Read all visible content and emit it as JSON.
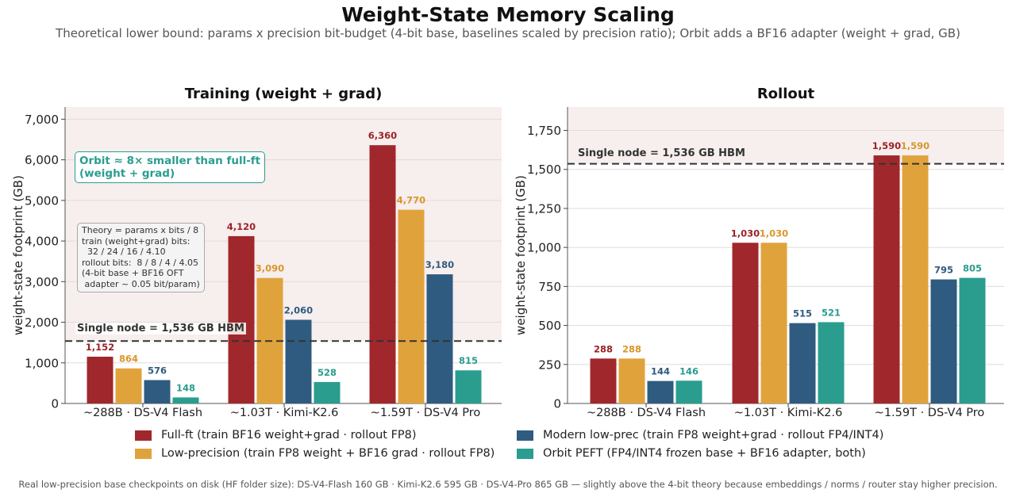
{
  "title": "Weight-State Memory Scaling",
  "subtitle": "Theoretical lower bound: params x precision bit-budget (4-bit base, baselines scaled by precision ratio); Orbit adds a BF16 adapter  (weight + grad, GB)",
  "colors": {
    "full_ft": "#a0282c",
    "low_prec": "#e0a33c",
    "modern": "#2f5b80",
    "orbit": "#2a9d8f",
    "hbm_band": "#f7eeee"
  },
  "legend": [
    {
      "label": "Full-ft  (train BF16 weight+grad · rollout FP8)",
      "color": "#a0282c"
    },
    {
      "label": "Low-precision  (train FP8 weight + BF16 grad · rollout FP8)",
      "color": "#e0a33c"
    },
    {
      "label": "Modern low-prec  (train FP8 weight+grad · rollout FP4/INT4)",
      "color": "#2f5b80"
    },
    {
      "label": "Orbit PEFT  (FP4/INT4 frozen base + BF16 adapter, both)",
      "color": "#2a9d8f"
    }
  ],
  "annotations": {
    "orbit_box": [
      "Orbit ≈ 8× smaller than full-ft",
      "(weight + grad)"
    ],
    "theory_box": [
      "Theory = params x bits / 8",
      "train (weight+grad) bits:",
      "  32 / 24 / 16 / 4.10",
      "rollout bits:  8 / 8 / 4 / 4.05",
      "(4-bit base + BF16 OFT",
      " adapter ~ 0.05 bit/param)"
    ],
    "hbm_line_label": "Single node = 1,536 GB HBM"
  },
  "footer": "Real low-precision base checkpoints on disk (HF folder size):  DS-V4-Flash 160 GB  ·  Kimi-K2.6 595 GB  ·  DS-V4-Pro 865 GB  — slightly above the 4-bit theory because embeddings / norms / router stay higher precision.",
  "chart_data": [
    {
      "type": "bar",
      "title": "Training  (weight + grad)",
      "ylabel": "weight-state footprint (GB)",
      "xlabel": "",
      "ylim": [
        0,
        7300
      ],
      "yticks": [
        0,
        1000,
        2000,
        3000,
        4000,
        5000,
        6000,
        7000
      ],
      "ytick_labels": [
        "0",
        "1,000",
        "2,000",
        "3,000",
        "4,000",
        "5,000",
        "6,000",
        "7,000"
      ],
      "grid": true,
      "categories": [
        "~288B  ·  DS-V4 Flash",
        "~1.03T  ·  Kimi-K2.6",
        "~1.59T  ·  DS-V4 Pro"
      ],
      "reference_line": {
        "value": 1536,
        "label": "Single node = 1,536 GB HBM"
      },
      "series": [
        {
          "name": "Full-ft",
          "values": [
            1152,
            4120,
            6360
          ],
          "labels": [
            "1,152",
            "4,120",
            "6,360"
          ]
        },
        {
          "name": "Low-precision",
          "values": [
            864,
            3090,
            4770
          ],
          "labels": [
            "864",
            "3,090",
            "4,770"
          ]
        },
        {
          "name": "Modern low-prec",
          "values": [
            576,
            2060,
            3180
          ],
          "labels": [
            "576",
            "2,060",
            "3,180"
          ]
        },
        {
          "name": "Orbit PEFT",
          "values": [
            148,
            528,
            815
          ],
          "labels": [
            "148",
            "528",
            "815"
          ]
        }
      ]
    },
    {
      "type": "bar",
      "title": "Rollout",
      "ylabel": "weight-state footprint (GB)",
      "xlabel": "",
      "ylim": [
        0,
        1900
      ],
      "yticks": [
        0,
        250,
        500,
        750,
        1000,
        1250,
        1500,
        1750
      ],
      "ytick_labels": [
        "0",
        "250",
        "500",
        "750",
        "1,000",
        "1,250",
        "1,500",
        "1,750"
      ],
      "grid": true,
      "categories": [
        "~288B  ·  DS-V4 Flash",
        "~1.03T  ·  Kimi-K2.6",
        "~1.59T  ·  DS-V4 Pro"
      ],
      "reference_line": {
        "value": 1536,
        "label": "Single node = 1,536 GB HBM"
      },
      "series": [
        {
          "name": "Full-ft",
          "values": [
            288,
            1030,
            1590
          ],
          "labels": [
            "288",
            "1,030",
            "1,590"
          ]
        },
        {
          "name": "Low-precision",
          "values": [
            288,
            1030,
            1590
          ],
          "labels": [
            "288",
            "1,030",
            "1,590"
          ]
        },
        {
          "name": "Modern low-prec",
          "values": [
            144,
            515,
            795
          ],
          "labels": [
            "144",
            "515",
            "795"
          ]
        },
        {
          "name": "Orbit PEFT",
          "values": [
            146,
            521,
            805
          ],
          "labels": [
            "146",
            "521",
            "805"
          ]
        }
      ]
    }
  ]
}
